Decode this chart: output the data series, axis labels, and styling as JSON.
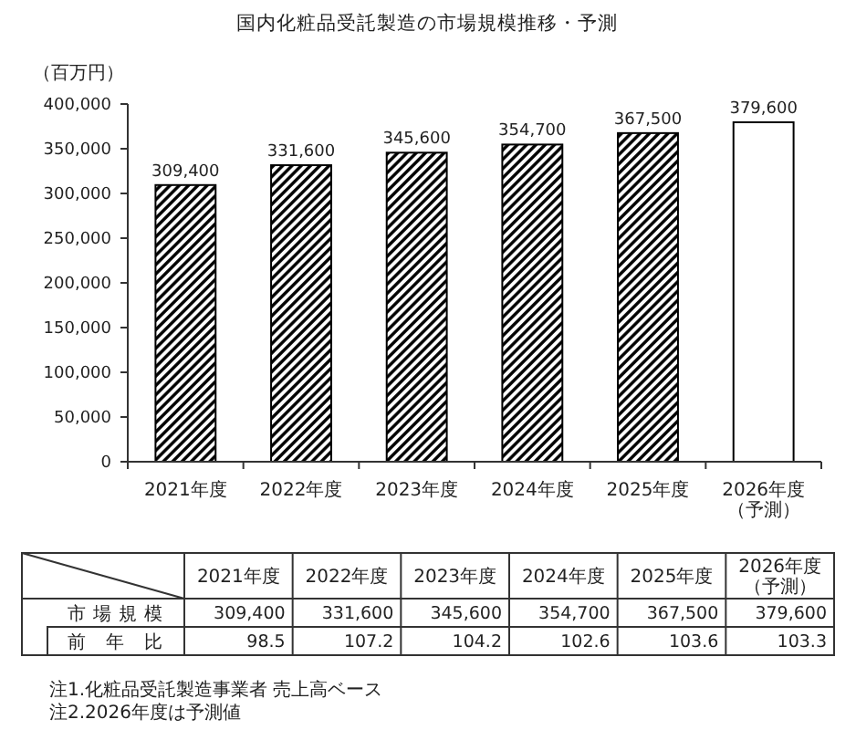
{
  "chart_data": [
    {
      "type": "bar",
      "title": "国内化粧品受託製造の市場規模推移・予測",
      "ylabel": "（百万円）",
      "categories": [
        "2021年度",
        "2022年度",
        "2023年度",
        "2024年度",
        "2025年度",
        "2026年度（予測）"
      ],
      "series": [
        {
          "name": "市場規模",
          "values": [
            309400,
            331600,
            345600,
            354700,
            367500,
            379600
          ],
          "colors": [
            "#000000",
            "#000000",
            "#000000",
            "#000000",
            "#000000",
            "#ffffff"
          ],
          "value_labels": [
            "309,400",
            "331,600",
            "345,600",
            "354,700",
            "367,500",
            "379,600"
          ]
        }
      ],
      "ylim": [
        0,
        400000
      ],
      "yticks": [
        0,
        {
          "value": 50000,
          "label": "50,000"
        },
        {
          "value": 100000,
          "label": "100,000"
        },
        {
          "value": 150000,
          "label": "150,000"
        },
        {
          "value": 200000,
          "label": "200,000"
        },
        {
          "value": 250000,
          "label": "250,000"
        },
        {
          "value": 300000,
          "label": "300,000"
        },
        {
          "value": 350000,
          "label": "350,000"
        },
        {
          "value": 400000,
          "label": "400,000"
        }
      ],
      "annotations": [
        "注1.化粧品受託製造事業者 売上高ベース",
        "注2.2026年度は予測値"
      ]
    },
    {
      "type": "other",
      "series": [
        {
          "name": "前年比",
          "values": [
            98.5,
            107.2,
            104.2,
            102.6,
            103.6,
            103.3
          ]
        }
      ],
      "data_labels": true
    }
  ]
}
